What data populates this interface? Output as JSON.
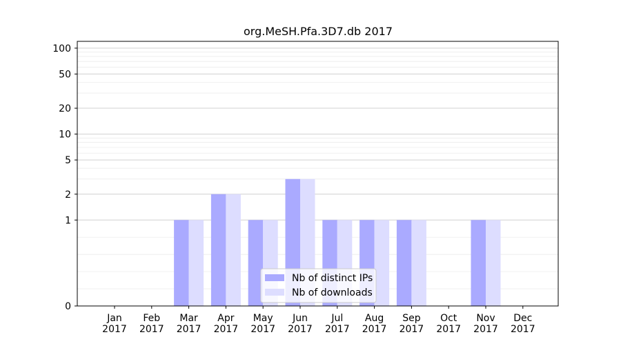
{
  "chart_data": {
    "type": "bar",
    "title": "org.MeSH.Pfa.3D7.db 2017",
    "xlabel": "",
    "ylabel": "",
    "y_scale": "symlog",
    "ylim": [
      0,
      120
    ],
    "yticks": [
      0,
      1,
      2,
      5,
      10,
      20,
      50,
      100
    ],
    "grid": true,
    "legend_position": "lower center",
    "categories": [
      "Jan\n2017",
      "Feb\n2017",
      "Mar\n2017",
      "Apr\n2017",
      "May\n2017",
      "Jun\n2017",
      "Jul\n2017",
      "Aug\n2017",
      "Sep\n2017",
      "Oct\n2017",
      "Nov\n2017",
      "Dec\n2017"
    ],
    "series": [
      {
        "name": "Nb of distinct IPs",
        "color": "#aaaaff",
        "values": [
          0,
          0,
          1,
          2,
          1,
          3,
          1,
          1,
          1,
          0,
          1,
          0
        ]
      },
      {
        "name": "Nb of downloads",
        "color": "#ddddff",
        "values": [
          0,
          0,
          1,
          2,
          1,
          3,
          1,
          1,
          1,
          0,
          1,
          0
        ]
      }
    ]
  }
}
